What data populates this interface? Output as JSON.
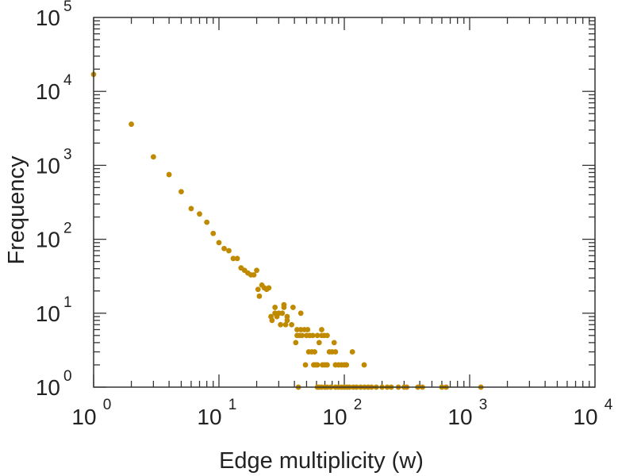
{
  "chart_data": {
    "type": "scatter",
    "title": "",
    "xlabel": "Edge multiplicity (w)",
    "ylabel": "Frequency",
    "xscale": "log",
    "yscale": "log",
    "xlim": [
      1,
      10000
    ],
    "ylim": [
      1,
      100000
    ],
    "x_ticks": [
      {
        "base": "10",
        "exp": "0",
        "value": 1
      },
      {
        "base": "10",
        "exp": "1",
        "value": 10
      },
      {
        "base": "10",
        "exp": "2",
        "value": 100
      },
      {
        "base": "10",
        "exp": "3",
        "value": 1000
      },
      {
        "base": "10",
        "exp": "4",
        "value": 10000
      }
    ],
    "y_ticks": [
      {
        "base": "10",
        "exp": "0",
        "value": 1
      },
      {
        "base": "10",
        "exp": "1",
        "value": 10
      },
      {
        "base": "10",
        "exp": "2",
        "value": 100
      },
      {
        "base": "10",
        "exp": "3",
        "value": 1000
      },
      {
        "base": "10",
        "exp": "4",
        "value": 10000
      },
      {
        "base": "10",
        "exp": "5",
        "value": 100000
      }
    ],
    "grid": false,
    "marker_color": "#c08a00",
    "series": [
      {
        "name": "frequency",
        "points": [
          [
            1,
            17000
          ],
          [
            2,
            3600
          ],
          [
            3,
            1300
          ],
          [
            4,
            750
          ],
          [
            5,
            440
          ],
          [
            6,
            260
          ],
          [
            7,
            220
          ],
          [
            8,
            170
          ],
          [
            9,
            120
          ],
          [
            10,
            90
          ],
          [
            11,
            75
          ],
          [
            12,
            70
          ],
          [
            13,
            55
          ],
          [
            14,
            55
          ],
          [
            15,
            41
          ],
          [
            16,
            38
          ],
          [
            17,
            35
          ],
          [
            18,
            33
          ],
          [
            19,
            33
          ],
          [
            20,
            38
          ],
          [
            20.5,
            21
          ],
          [
            21,
            17
          ],
          [
            22,
            24
          ],
          [
            23,
            22
          ],
          [
            24,
            21
          ],
          [
            25,
            22
          ],
          [
            26,
            9
          ],
          [
            26.5,
            8
          ],
          [
            28,
            12
          ],
          [
            28,
            10
          ],
          [
            29,
            9
          ],
          [
            30,
            10
          ],
          [
            31,
            7
          ],
          [
            32,
            10
          ],
          [
            33,
            12
          ],
          [
            33,
            13
          ],
          [
            34,
            7
          ],
          [
            35,
            8
          ],
          [
            35,
            9
          ],
          [
            38,
            7
          ],
          [
            39,
            12
          ],
          [
            41,
            4
          ],
          [
            42,
            5
          ],
          [
            42,
            6
          ],
          [
            43,
            1
          ],
          [
            44,
            5
          ],
          [
            45,
            10
          ],
          [
            45,
            6
          ],
          [
            46,
            5
          ],
          [
            48,
            6
          ],
          [
            49,
            2
          ],
          [
            50,
            5
          ],
          [
            51,
            6
          ],
          [
            52,
            3
          ],
          [
            53,
            5
          ],
          [
            55,
            3
          ],
          [
            56,
            5
          ],
          [
            57,
            2
          ],
          [
            58,
            3
          ],
          [
            59,
            2
          ],
          [
            61,
            5
          ],
          [
            61,
            2
          ],
          [
            61,
            1
          ],
          [
            63,
            4
          ],
          [
            63,
            1
          ],
          [
            66,
            6
          ],
          [
            66,
            5
          ],
          [
            66,
            1
          ],
          [
            67,
            2
          ],
          [
            69,
            5
          ],
          [
            70,
            2
          ],
          [
            70,
            1
          ],
          [
            73,
            5
          ],
          [
            73,
            2
          ],
          [
            73,
            1
          ],
          [
            76,
            3
          ],
          [
            78,
            1
          ],
          [
            80,
            3
          ],
          [
            83,
            4
          ],
          [
            85,
            3
          ],
          [
            85,
            2
          ],
          [
            85,
            1
          ],
          [
            90,
            2
          ],
          [
            90,
            1
          ],
          [
            95,
            2
          ],
          [
            95,
            1
          ],
          [
            100,
            2
          ],
          [
            100,
            1
          ],
          [
            104,
            2
          ],
          [
            105,
            1
          ],
          [
            110,
            1
          ],
          [
            116,
            3
          ],
          [
            118,
            1
          ],
          [
            125,
            1
          ],
          [
            135,
            1
          ],
          [
            144,
            2
          ],
          [
            145,
            1
          ],
          [
            155,
            1
          ],
          [
            165,
            1
          ],
          [
            180,
            1
          ],
          [
            200,
            1
          ],
          [
            220,
            1
          ],
          [
            237,
            1
          ],
          [
            270,
            1
          ],
          [
            300,
            1
          ],
          [
            315,
            1
          ],
          [
            386,
            1
          ],
          [
            420,
            1
          ],
          [
            600,
            1
          ],
          [
            650,
            1
          ],
          [
            1230,
            1
          ]
        ]
      }
    ]
  }
}
